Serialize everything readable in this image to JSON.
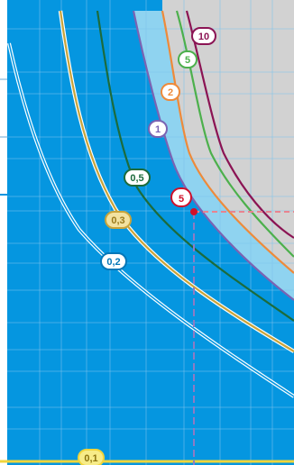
{
  "chart_data": {
    "type": "line",
    "title": "",
    "xlabel": "",
    "ylabel": "",
    "grid": true,
    "colors": {
      "background_blue": "#0596E0",
      "band_fill": "#8FD3F0",
      "outer_gray": "#D2D2D2",
      "grid_line": "#7FC4EC",
      "grid_line_gray": "#E6E6E6",
      "marker_red": "#D0102A",
      "dash_red": "#E9838F",
      "dash_purple": "#8D7BC4"
    },
    "series": [
      {
        "name": "10",
        "color": "#8B1454",
        "label_fill": "#ffffff",
        "label_text": "#8B1454"
      },
      {
        "name": "5",
        "color": "#4CB04C",
        "label_fill": "#ffffff",
        "label_text": "#4CB04C"
      },
      {
        "name": "2",
        "color": "#EE8A3A",
        "label_fill": "#ffffff",
        "label_text": "#EE8A3A"
      },
      {
        "name": "1",
        "color": "#7A63B3",
        "label_fill": "#ffffff",
        "label_text": "#7A63B3"
      },
      {
        "name": "0,5",
        "color": "#1C6B3C",
        "label_fill": "#ffffff",
        "label_text": "#1C6B3C"
      },
      {
        "name": "0,3",
        "color": "#C9A43A",
        "label_fill": "#F3E2A0",
        "label_text": "#9A7A1C"
      },
      {
        "name": "0,2",
        "color": "#ffffff",
        "label_fill": "#ffffff",
        "label_text": "#0577B8"
      },
      {
        "name": "0,1",
        "color": "#F0D53C",
        "label_fill": "#F7EC88",
        "label_text": "#8C7410"
      }
    ],
    "marker": {
      "label": "5"
    }
  }
}
